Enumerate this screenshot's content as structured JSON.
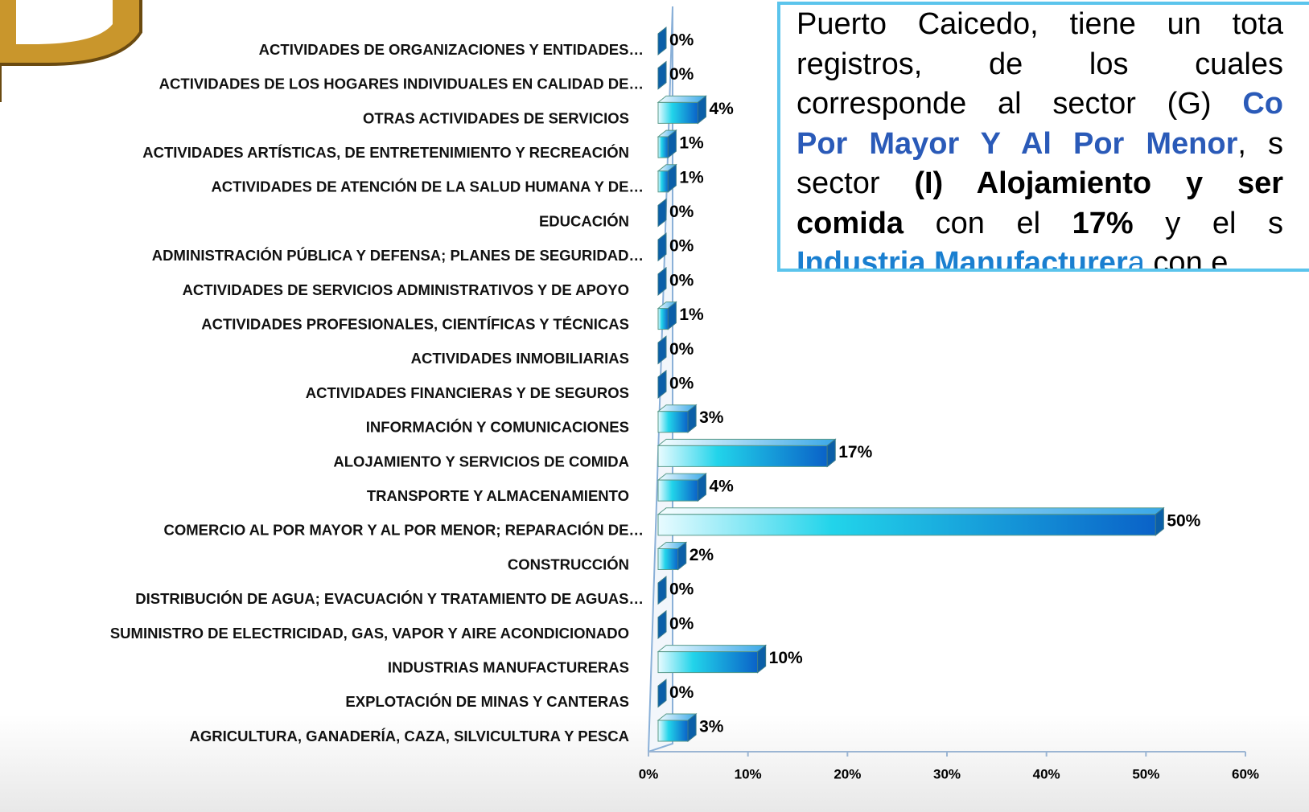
{
  "chart_data": {
    "type": "bar",
    "orientation": "horizontal",
    "categories": [
      "ACTIVIDADES DE ORGANIZACIONES Y ENTIDADES…",
      "ACTIVIDADES  DE LOS HOGARES INDIVIDUALES  EN CALIDAD DE…",
      "OTRAS ACTIVIDADES DE SERVICIOS",
      "ACTIVIDADES  ARTÍSTICAS, DE ENTRETENIMIENTO Y RECREACIÓN",
      "ACTIVIDADES DE ATENCIÓN DE LA SALUD  HUMANA Y DE…",
      "EDUCACIÓN",
      "ADMINISTRACIÓN  PÚBLICA Y DEFENSA;  PLANES  DE SEGURIDAD…",
      "ACTIVIDADES DE SERVICIOS ADMINISTRATIVOS  Y DE APOYO",
      "ACTIVIDADES PROFESIONALES, CIENTÍFICAS Y TÉCNICAS",
      "ACTIVIDADES  INMOBILIARIAS",
      "ACTIVIDADES  FINANCIERAS  Y DE SEGUROS",
      "INFORMACIÓN Y COMUNICACIONES",
      "ALOJAMIENTO Y SERVICIOS DE COMIDA",
      "TRANSPORTE Y ALMACENAMIENTO",
      "COMERCIO  AL POR MAYOR Y AL POR MENOR; REPARACIÓN  DE…",
      "CONSTRUCCIÓN",
      "DISTRIBUCIÓN DE AGUA; EVACUACIÓN Y TRATAMIENTO DE AGUAS…",
      "SUMINISTRO DE ELECTRICIDAD, GAS, VAPOR Y AIRE ACONDICIONADO",
      "INDUSTRIAS MANUFACTURERAS",
      "EXPLOTACIÓN DE MINAS Y CANTERAS",
      "AGRICULTURA, GANADERÍA,  CAZA, SILVICULTURA Y PESCA"
    ],
    "values": [
      0,
      0,
      4,
      1,
      1,
      0,
      0,
      0,
      1,
      0,
      0,
      3,
      17,
      4,
      50,
      2,
      0,
      0,
      10,
      0,
      3
    ],
    "value_labels": [
      "0%",
      "0%",
      "4%",
      "1%",
      "1%",
      "0%",
      "0%",
      "0%",
      "1%",
      "0%",
      "0%",
      "3%",
      "17%",
      "4%",
      "50%",
      "2%",
      "0%",
      "0%",
      "10%",
      "0%",
      "3%"
    ],
    "color": "#1ec8e6",
    "xlim": [
      0,
      60
    ],
    "xticks": [
      {
        "value": 0,
        "label": "0%"
      },
      {
        "value": 10,
        "label": "10%"
      },
      {
        "value": 20,
        "label": "20%"
      },
      {
        "value": 30,
        "label": "30%"
      },
      {
        "value": 40,
        "label": "40%"
      },
      {
        "value": 50,
        "label": "50%"
      },
      {
        "value": 60,
        "label": "60%"
      }
    ]
  },
  "text_box": {
    "lines": [
      [
        {
          "text": "Puerto Caicedo, tiene un tota"
        }
      ],
      [
        {
          "text": "registros, de los cuales"
        }
      ],
      [
        {
          "text": "corresponde al sector (G) "
        },
        {
          "text": "Co",
          "style": "blue"
        }
      ],
      [
        {
          "text": "Por Mayor Y Al Por Menor",
          "style": "blue"
        },
        {
          "text": ", s"
        }
      ],
      [
        {
          "text": "sector "
        },
        {
          "text": "(I) Alojamiento y ser",
          "style": "bold"
        }
      ],
      [
        {
          "text": "comida",
          "style": "bold"
        },
        {
          "text": " con el "
        },
        {
          "text": "17%",
          "style": "bold"
        },
        {
          "text": " y el s"
        }
      ],
      [
        {
          "text": "Industria Manufacturer",
          "style": "light"
        },
        {
          "text": "a",
          "style": "lightplain"
        },
        {
          "text": " con e"
        }
      ]
    ]
  }
}
